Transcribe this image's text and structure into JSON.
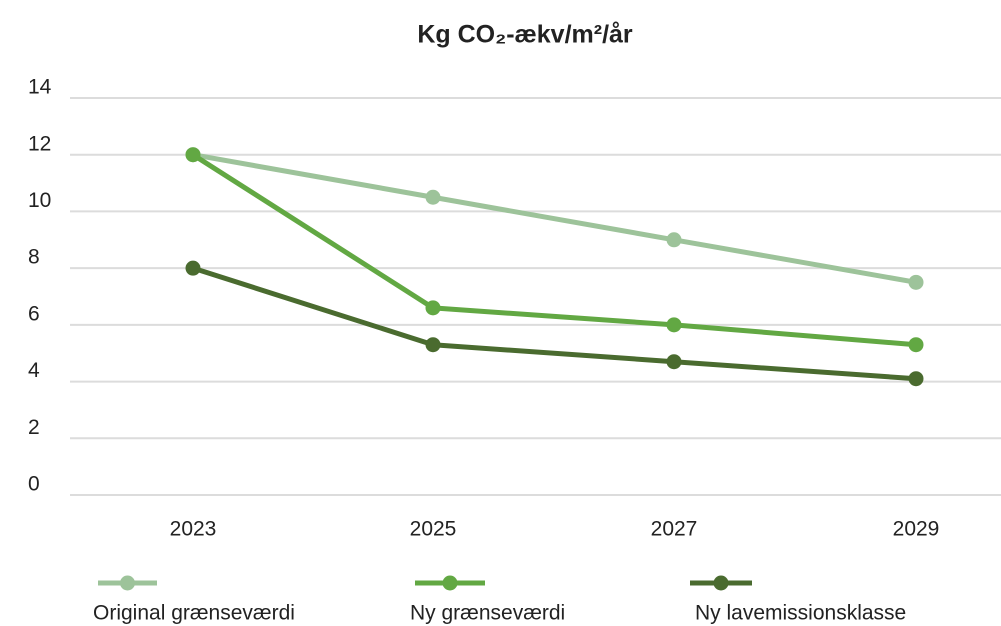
{
  "chart_data": {
    "type": "line",
    "title": "Kg CO₂-ækv/m²/år",
    "categories": [
      "2023",
      "2025",
      "2027",
      "2029"
    ],
    "series": [
      {
        "name": "Original grænseværdi",
        "color": "#9dc39a",
        "values": [
          12,
          10.5,
          9,
          7.5
        ]
      },
      {
        "name": "Ny grænseværdi",
        "color": "#62a843",
        "values": [
          12,
          6.6,
          6,
          5.3
        ]
      },
      {
        "name": "Ny lavemissionsklasse",
        "color": "#4a6b2f",
        "values": [
          8,
          5.3,
          4.7,
          4.1
        ]
      }
    ],
    "ylim": [
      0,
      14
    ],
    "yticks": [
      0,
      2,
      4,
      6,
      8,
      10,
      12,
      14
    ],
    "grid": true
  }
}
